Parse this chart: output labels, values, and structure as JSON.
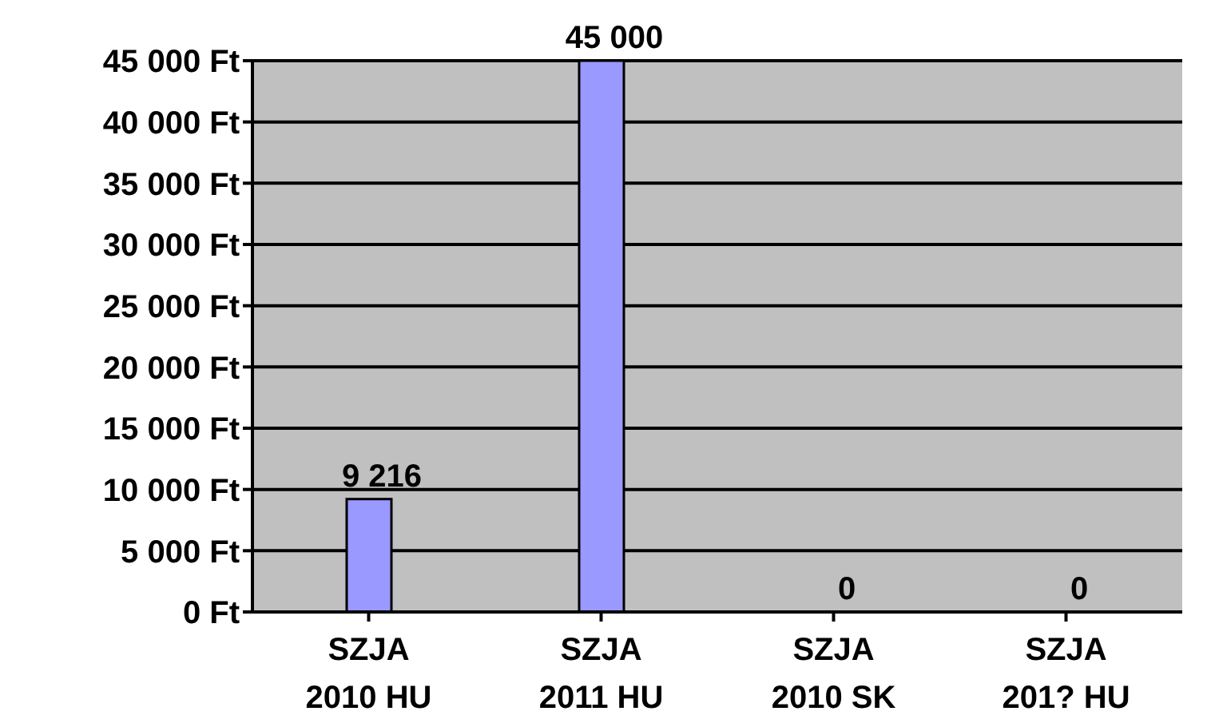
{
  "chart_data": {
    "type": "bar",
    "categories": [
      "SZJA 2010 HU",
      "SZJA 2011 HU",
      "SZJA 2010 SK",
      "SZJA 201? HU"
    ],
    "values": [
      9216,
      45000,
      0,
      0
    ],
    "colors": [
      "#9999ff",
      "#9999ff",
      "#cccc99",
      "#99cccc"
    ],
    "value_labels": [
      "9 216",
      "45 000",
      "0",
      "0"
    ],
    "ylim": [
      0,
      45000
    ],
    "yticks": [
      {
        "value": 0,
        "label": "0 Ft"
      },
      {
        "value": 5000,
        "label": "5 000 Ft"
      },
      {
        "value": 10000,
        "label": "10 000 Ft"
      },
      {
        "value": 15000,
        "label": "15 000 Ft"
      },
      {
        "value": 20000,
        "label": "20 000 Ft"
      },
      {
        "value": 25000,
        "label": "25 000 Ft"
      },
      {
        "value": 30000,
        "label": "30 000 Ft"
      },
      {
        "value": 35000,
        "label": "35 000 Ft"
      },
      {
        "value": 40000,
        "label": "40 000 Ft"
      },
      {
        "value": 45000,
        "label": "45 000 Ft"
      }
    ],
    "grid": "y",
    "legend": false
  }
}
